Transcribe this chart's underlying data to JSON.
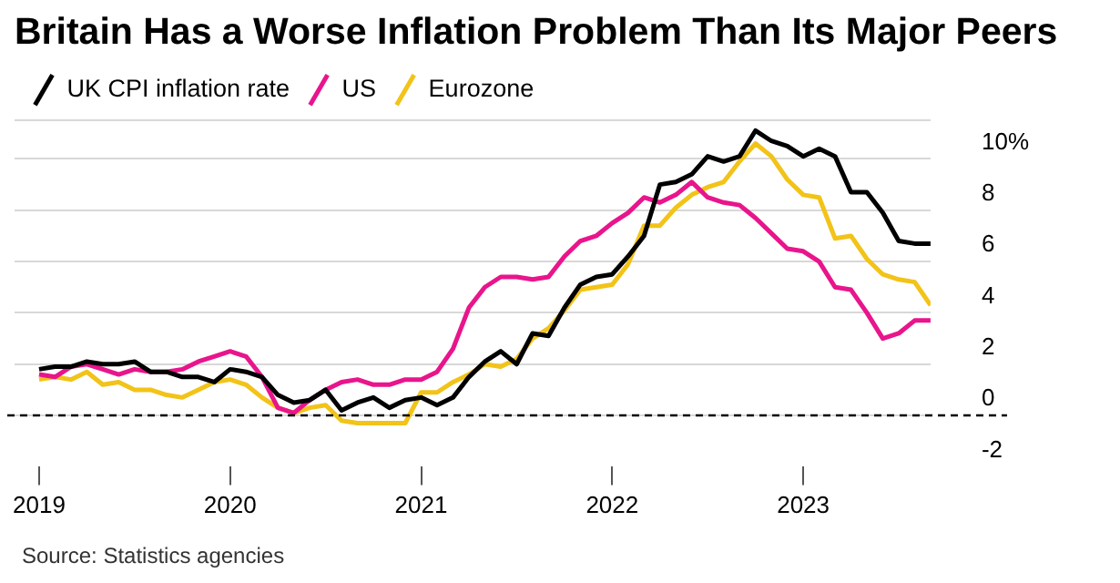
{
  "chart_data": {
    "type": "line",
    "title": "Britain Has a Worse Inflation Problem Than Its Major Peers",
    "x": [
      "2019-01",
      "2019-02",
      "2019-03",
      "2019-04",
      "2019-05",
      "2019-06",
      "2019-07",
      "2019-08",
      "2019-09",
      "2019-10",
      "2019-11",
      "2019-12",
      "2020-01",
      "2020-02",
      "2020-03",
      "2020-04",
      "2020-05",
      "2020-06",
      "2020-07",
      "2020-08",
      "2020-09",
      "2020-10",
      "2020-11",
      "2020-12",
      "2021-01",
      "2021-02",
      "2021-03",
      "2021-04",
      "2021-05",
      "2021-06",
      "2021-07",
      "2021-08",
      "2021-09",
      "2021-10",
      "2021-11",
      "2021-12",
      "2022-01",
      "2022-02",
      "2022-03",
      "2022-04",
      "2022-05",
      "2022-06",
      "2022-07",
      "2022-08",
      "2022-09",
      "2022-10",
      "2022-11",
      "2022-12",
      "2023-01",
      "2023-02",
      "2023-03",
      "2023-04",
      "2023-05",
      "2023-06",
      "2023-07",
      "2023-08",
      "2023-09"
    ],
    "series": [
      {
        "name": "UK CPI inflation rate",
        "color": "#000000",
        "values": [
          1.8,
          1.9,
          1.9,
          2.1,
          2.0,
          2.0,
          2.1,
          1.7,
          1.7,
          1.5,
          1.5,
          1.3,
          1.8,
          1.7,
          1.5,
          0.8,
          0.5,
          0.6,
          1.0,
          0.2,
          0.5,
          0.7,
          0.3,
          0.6,
          0.7,
          0.4,
          0.7,
          1.5,
          2.1,
          2.5,
          2.0,
          3.2,
          3.1,
          4.2,
          5.1,
          5.4,
          5.5,
          6.2,
          7.0,
          9.0,
          9.1,
          9.4,
          10.1,
          9.9,
          10.1,
          11.1,
          10.7,
          10.5,
          10.1,
          10.4,
          10.1,
          8.7,
          8.7,
          7.9,
          6.8,
          6.7,
          6.7
        ]
      },
      {
        "name": "US",
        "color": "#e8158c",
        "values": [
          1.6,
          1.5,
          1.9,
          2.0,
          1.8,
          1.6,
          1.8,
          1.7,
          1.7,
          1.8,
          2.1,
          2.3,
          2.5,
          2.3,
          1.5,
          0.3,
          0.1,
          0.6,
          1.0,
          1.3,
          1.4,
          1.2,
          1.2,
          1.4,
          1.4,
          1.7,
          2.6,
          4.2,
          5.0,
          5.4,
          5.4,
          5.3,
          5.4,
          6.2,
          6.8,
          7.0,
          7.5,
          7.9,
          8.5,
          8.3,
          8.6,
          9.1,
          8.5,
          8.3,
          8.2,
          7.7,
          7.1,
          6.5,
          6.4,
          6.0,
          5.0,
          4.9,
          4.0,
          3.0,
          3.2,
          3.7,
          3.7
        ]
      },
      {
        "name": "Eurozone",
        "color": "#f2c318",
        "values": [
          1.4,
          1.5,
          1.4,
          1.7,
          1.2,
          1.3,
          1.0,
          1.0,
          0.8,
          0.7,
          1.0,
          1.3,
          1.4,
          1.2,
          0.7,
          0.3,
          0.1,
          0.3,
          0.4,
          -0.2,
          -0.3,
          -0.3,
          -0.3,
          -0.3,
          0.9,
          0.9,
          1.3,
          1.6,
          2.0,
          1.9,
          2.2,
          3.0,
          3.4,
          4.1,
          4.9,
          5.0,
          5.1,
          5.9,
          7.4,
          7.4,
          8.1,
          8.6,
          8.9,
          9.1,
          9.9,
          10.6,
          10.1,
          9.2,
          8.6,
          8.5,
          6.9,
          7.0,
          6.1,
          5.5,
          5.3,
          5.2,
          4.3
        ]
      }
    ],
    "xlim": [
      "2018-11-15",
      "2023-09"
    ],
    "xticks": [
      "2019",
      "2020",
      "2021",
      "2022",
      "2023"
    ],
    "ylim": [
      -2,
      11.5
    ],
    "yticks": [
      -2,
      0,
      2,
      4,
      6,
      8,
      {
        "value": 10,
        "label": "10%"
      },
      {
        "value": 11.5,
        "label": null
      }
    ],
    "ref_lines": [
      {
        "axis": "y",
        "value": 0,
        "line_style": "dashed",
        "color": "#000000"
      }
    ],
    "grid": "y",
    "legend": "top left",
    "annotations": [
      "Source: Statistics agencies"
    ]
  }
}
